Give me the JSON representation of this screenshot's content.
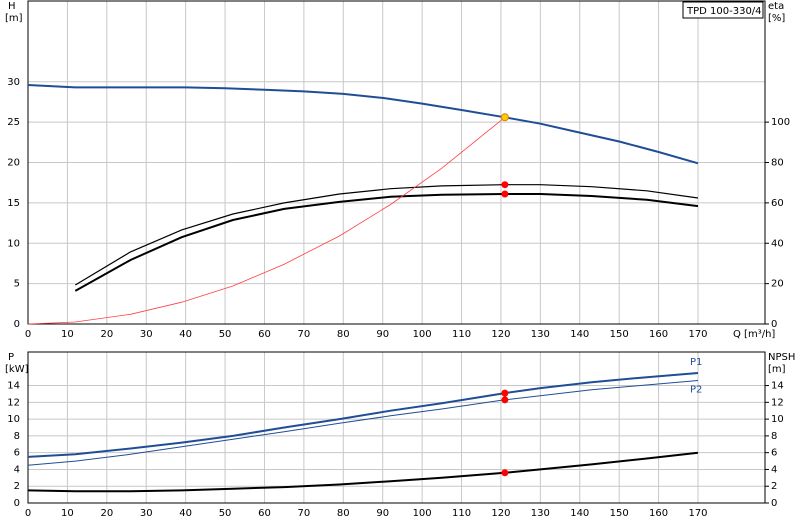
{
  "chart_data": [
    {
      "type": "line",
      "annotation": "TPD 100-330/4",
      "ylabel": "H",
      "yunit": "[m]",
      "y2label": "eta",
      "y2unit": "[%]",
      "xlabel": "Q [m³/h]",
      "xlim": [
        0,
        187
      ],
      "xticks": [
        0,
        10,
        20,
        30,
        40,
        50,
        60,
        70,
        80,
        90,
        100,
        110,
        120,
        130,
        140,
        150,
        160,
        170
      ],
      "ylim": [
        0,
        40
      ],
      "yticks": [
        0,
        5,
        10,
        15,
        20,
        25,
        30
      ],
      "y2lim": [
        0,
        160
      ],
      "y2ticks": [
        0,
        20,
        40,
        60,
        80,
        100
      ],
      "grid": true,
      "series": [
        {
          "color": "#1f4e96",
          "line_width": 2,
          "x": [
            0,
            12,
            20,
            40,
            50,
            60,
            70,
            80,
            90,
            100,
            110,
            121,
            130,
            140,
            150,
            160,
            170
          ],
          "values": [
            29.6,
            29.3,
            29.3,
            29.3,
            29.2,
            29.0,
            28.8,
            28.5,
            28.0,
            27.3,
            26.5,
            25.6,
            24.8,
            23.7,
            22.6,
            21.3,
            19.9
          ]
        },
        {
          "color": "#000000",
          "line_width": 1.2,
          "axis": "y2",
          "x": [
            12,
            26,
            39,
            52,
            65,
            79,
            92,
            105,
            121,
            130,
            143,
            157,
            170
          ],
          "values": [
            19.3,
            35.7,
            46.6,
            54.5,
            60,
            64.4,
            67,
            68.4,
            69,
            69,
            68,
            66,
            62.4
          ]
        },
        {
          "color": "#000000",
          "line_width": 2,
          "axis": "y2",
          "x": [
            12,
            26,
            39,
            52,
            65,
            79,
            92,
            105,
            121,
            130,
            143,
            157,
            170
          ],
          "values": [
            16.4,
            31.7,
            43,
            51.5,
            57,
            60.5,
            63,
            64,
            64.4,
            64.4,
            63.4,
            61.5,
            58.4
          ]
        },
        {
          "color": "#ff4040",
          "line_width": 0.8,
          "x": [
            0,
            12,
            26,
            39,
            52,
            65,
            79,
            92,
            105,
            121
          ],
          "values": [
            0,
            0.25,
            1.2,
            2.7,
            4.7,
            7.4,
            10.9,
            14.8,
            19.3,
            25.6
          ]
        }
      ],
      "points": [
        {
          "x": 121,
          "y": 69,
          "axis": "y2",
          "color": "#ff0000"
        },
        {
          "x": 121,
          "y": 64.4,
          "axis": "y2",
          "color": "#ff0000"
        },
        {
          "x": 121,
          "y": 25.6,
          "color": "#ffcc00"
        }
      ]
    },
    {
      "type": "line",
      "ylabel": "P",
      "yunit": "[kW]",
      "y2label": "NPSH",
      "y2unit": "[m]",
      "xlim": [
        0,
        187
      ],
      "xticks": [
        0,
        10,
        20,
        30,
        40,
        50,
        60,
        70,
        80,
        90,
        100,
        110,
        120,
        130,
        140,
        150,
        160,
        170
      ],
      "ylim": [
        0,
        18
      ],
      "yticks": [
        0,
        2,
        4,
        6,
        8,
        10,
        12,
        14
      ],
      "y2lim": [
        0,
        18
      ],
      "y2ticks": [
        0,
        2,
        4,
        6,
        8,
        10,
        12,
        14
      ],
      "grid": true,
      "series": [
        {
          "name": "P1",
          "color": "#1f4e96",
          "line_width": 2,
          "x": [
            0,
            12,
            26,
            39,
            52,
            65,
            79,
            92,
            105,
            121,
            130,
            143,
            157,
            170
          ],
          "values": [
            5.5,
            5.8,
            6.5,
            7.2,
            8.0,
            9.0,
            10.0,
            11.0,
            11.9,
            13.1,
            13.7,
            14.4,
            15.0,
            15.5
          ]
        },
        {
          "name": "P2",
          "color": "#1f4e96",
          "line_width": 1,
          "x": [
            0,
            12,
            26,
            39,
            52,
            65,
            79,
            92,
            105,
            121,
            143,
            170
          ],
          "values": [
            4.5,
            5.0,
            5.8,
            6.7,
            7.6,
            8.5,
            9.5,
            10.4,
            11.2,
            12.3,
            13.5,
            14.6
          ]
        },
        {
          "color": "#000000",
          "line_width": 2,
          "axis": "y2",
          "x": [
            0,
            12,
            26,
            39,
            52,
            65,
            79,
            92,
            105,
            121,
            130,
            143,
            157,
            170
          ],
          "values": [
            1.5,
            1.4,
            1.4,
            1.5,
            1.7,
            1.9,
            2.2,
            2.6,
            3.0,
            3.6,
            4.0,
            4.6,
            5.3,
            6.0
          ]
        }
      ],
      "points": [
        {
          "x": 121,
          "y": 13.1,
          "color": "#ff0000"
        },
        {
          "x": 121,
          "y": 12.3,
          "color": "#ff0000"
        },
        {
          "x": 121,
          "y": 3.6,
          "axis": "y2",
          "color": "#ff0000"
        }
      ]
    }
  ]
}
